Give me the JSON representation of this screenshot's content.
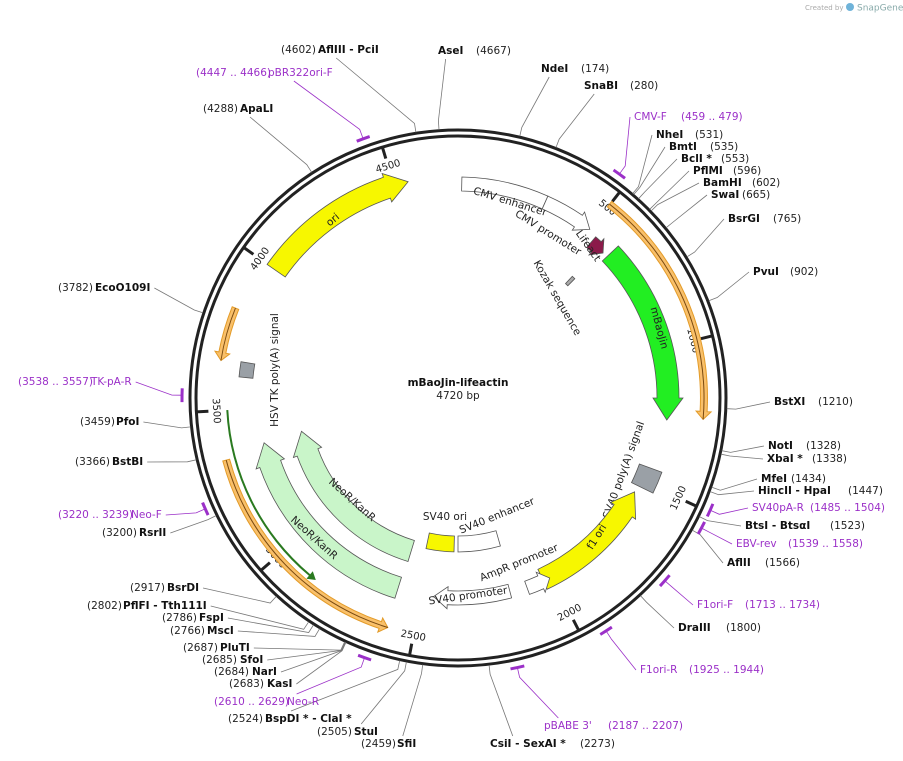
{
  "credit": {
    "prefix": "Created by",
    "brand": "SnapGene"
  },
  "title": "mBaoJin-lifeactin",
  "length": "4720 bp",
  "ruler": [
    500,
    1000,
    1500,
    2000,
    2500,
    3000,
    3500,
    4000,
    4500
  ],
  "sites": [
    {
      "name": "AseI",
      "pos": "(4667)"
    },
    {
      "name": "NdeI",
      "pos": "(174)"
    },
    {
      "name": "SnaBI",
      "pos": "(280)"
    },
    {
      "name": "NheI",
      "pos": "(531)"
    },
    {
      "name": "BmtI",
      "pos": "(535)"
    },
    {
      "name": "BclI *",
      "pos": "(553)"
    },
    {
      "name": "PflMI",
      "pos": "(596)"
    },
    {
      "name": "BamHI",
      "pos": "(602)"
    },
    {
      "name": "SwaI",
      "pos": "(665)"
    },
    {
      "name": "BsrGI",
      "pos": "(765)"
    },
    {
      "name": "PvuI",
      "pos": "(902)"
    },
    {
      "name": "BstXI",
      "pos": "(1210)"
    },
    {
      "name": "NotI",
      "pos": "(1328)"
    },
    {
      "name": "XbaI *",
      "pos": "(1338)"
    },
    {
      "name": "MfeI",
      "pos": "(1434)"
    },
    {
      "name": "HincII  -  HpaI",
      "pos": "(1447)"
    },
    {
      "name": "BtsI  -  BtsαI",
      "pos": "(1523)"
    },
    {
      "name": "AflII",
      "pos": "(1566)"
    },
    {
      "name": "DraIII",
      "pos": "(1800)"
    },
    {
      "name": "CsiI  -  SexAI *",
      "pos": "(2273)"
    },
    {
      "name": "SfiI",
      "pos": "(2459)"
    },
    {
      "name": "StuI",
      "pos": "(2505)"
    },
    {
      "name": "BspDI *  -  ClaI *",
      "pos": "(2524)"
    },
    {
      "name": "KasI",
      "pos": "(2683)"
    },
    {
      "name": "NarI",
      "pos": "(2684)"
    },
    {
      "name": "SfoI",
      "pos": "(2685)"
    },
    {
      "name": "PluTI",
      "pos": "(2687)"
    },
    {
      "name": "MscI",
      "pos": "(2766)"
    },
    {
      "name": "FspI",
      "pos": "(2786)"
    },
    {
      "name": "PflFI  -  Tth111I",
      "pos": "(2802)"
    },
    {
      "name": "BsrDI",
      "pos": "(2917)"
    },
    {
      "name": "RsrII",
      "pos": "(3200)"
    },
    {
      "name": "BstBI",
      "pos": "(3366)"
    },
    {
      "name": "PfoI",
      "pos": "(3459)"
    },
    {
      "name": "EcoO109I",
      "pos": "(3782)"
    },
    {
      "name": "ApaLI",
      "pos": "(4288)"
    },
    {
      "name": "AflIII  -  PciI",
      "pos": "(4602)"
    }
  ],
  "primers": [
    {
      "name": "pBR322ori-F",
      "range": "(4447 .. 4466)"
    },
    {
      "name": "CMV-F",
      "range": "(459 .. 479)"
    },
    {
      "name": "TK-pA-R",
      "range": "(3538 .. 3557)"
    },
    {
      "name": "Neo-F",
      "range": "(3220 .. 3239)"
    },
    {
      "name": "Neo-R",
      "range": "(2610 .. 2629)"
    },
    {
      "name": "pBABE 3'",
      "range": "(2187 .. 2207)"
    },
    {
      "name": "F1ori-R",
      "range": "(1925 .. 1944)"
    },
    {
      "name": "F1ori-F",
      "range": "(1713 .. 1734)"
    },
    {
      "name": "EBV-rev",
      "range": "(1539 .. 1558)"
    },
    {
      "name": "SV40pA-R",
      "range": "(1485 .. 1504)"
    }
  ],
  "features": [
    {
      "label": "ori"
    },
    {
      "label": "CMV enhancer"
    },
    {
      "label": "CMV promoter"
    },
    {
      "label": "Lifeact"
    },
    {
      "label": "Kozak sequence"
    },
    {
      "label": "mBaoJin"
    },
    {
      "label": "SV40 poly(A) signal"
    },
    {
      "label": "f1 ori"
    },
    {
      "label": "AmpR promoter"
    },
    {
      "label": "SV40 promoter"
    },
    {
      "label": "SV40 ori"
    },
    {
      "label": "SV40 enhancer"
    },
    {
      "label": "NeoR/KanR"
    },
    {
      "label": "NeoR/KanR"
    },
    {
      "label": "HSV TK poly(A) signal"
    }
  ]
}
